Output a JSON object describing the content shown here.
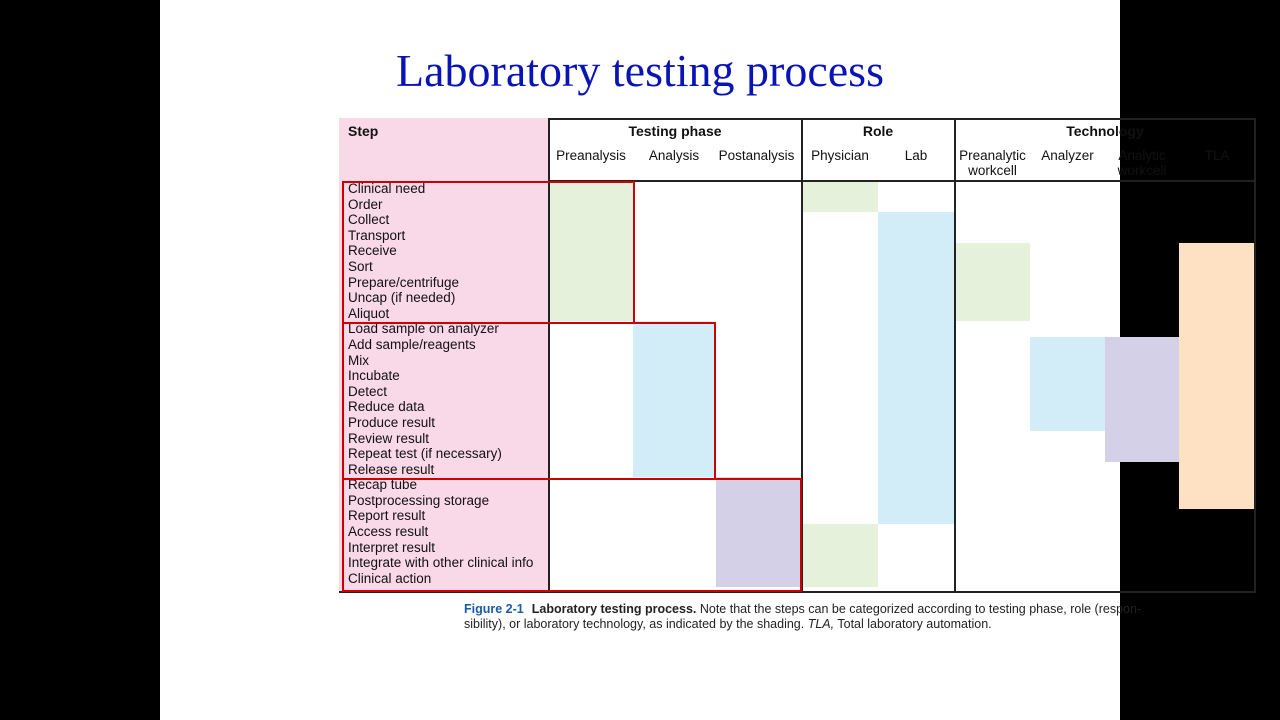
{
  "slide": {
    "title": "Laboratory testing process"
  },
  "table": {
    "step_header": "Step",
    "groups": [
      {
        "label": "Testing phase",
        "columns": [
          "Preanalysis",
          "Analysis",
          "Postanalysis"
        ]
      },
      {
        "label": "Role",
        "columns": [
          "Physician",
          "Lab"
        ]
      },
      {
        "label": "Technology",
        "columns": [
          "Preanalytic\nworkcell",
          "Analyzer",
          "Analytic\nworkcell",
          "TLA"
        ]
      }
    ],
    "steps": [
      "Clinical need",
      "Order",
      "Collect",
      "Transport",
      "Receive",
      "Sort",
      "Prepare/centrifuge",
      "Uncap (if needed)",
      "Aliquot",
      "Load sample on analyzer",
      "Add sample/reagents",
      "Mix",
      "Incubate",
      "Detect",
      "Reduce data",
      "Produce result",
      "Review result",
      "Repeat test (if necessary)",
      "Release result",
      "Recap tube",
      "Postprocessing storage",
      "Report result",
      "Access result",
      "Interpret result",
      "Integrate with other clinical info",
      "Clinical action"
    ],
    "colors": {
      "step_column": "#f9d8e8",
      "green": "#e6f1dc",
      "blue": "#d2ecf8",
      "purple": "#d4d0e8",
      "orange": "#fde1c2",
      "highlight_box": "#cc0000"
    },
    "shading": [
      {
        "column": "Preanalysis",
        "from_step": "Clinical need",
        "to_step": "Aliquot",
        "color": "green"
      },
      {
        "column": "Analysis",
        "from_step": "Load sample on analyzer",
        "to_step": "Release result",
        "color": "blue"
      },
      {
        "column": "Postanalysis",
        "from_step": "Recap tube",
        "to_step": "Clinical action",
        "color": "purple"
      },
      {
        "column": "Physician",
        "from_step": "Clinical need",
        "to_step": "Order",
        "color": "green"
      },
      {
        "column": "Physician",
        "from_step": "Access result",
        "to_step": "Clinical action",
        "color": "green"
      },
      {
        "column": "Lab",
        "from_step": "Collect",
        "to_step": "Report result",
        "color": "blue"
      },
      {
        "column": "Preanalytic workcell",
        "from_step": "Receive",
        "to_step": "Aliquot",
        "color": "green"
      },
      {
        "column": "Analyzer",
        "from_step": "Add sample/reagents",
        "to_step": "Produce result",
        "color": "blue"
      },
      {
        "column": "Analytic workcell",
        "from_step": "Add sample/reagents",
        "to_step": "Repeat test (if necessary)",
        "color": "purple"
      },
      {
        "column": "TLA",
        "from_step": "Receive",
        "to_step": "Postprocessing storage",
        "color": "orange"
      }
    ]
  },
  "caption": {
    "figure_number": "Figure 2-1",
    "figure_title": "Laboratory testing process.",
    "text_part1": " Note that the steps can be categorized according to testing phase, role (respon-sibility), or laboratory technology, as indicated by the shading. ",
    "tla_italic": "TLA,",
    "text_part2": " Total laboratory automation."
  }
}
